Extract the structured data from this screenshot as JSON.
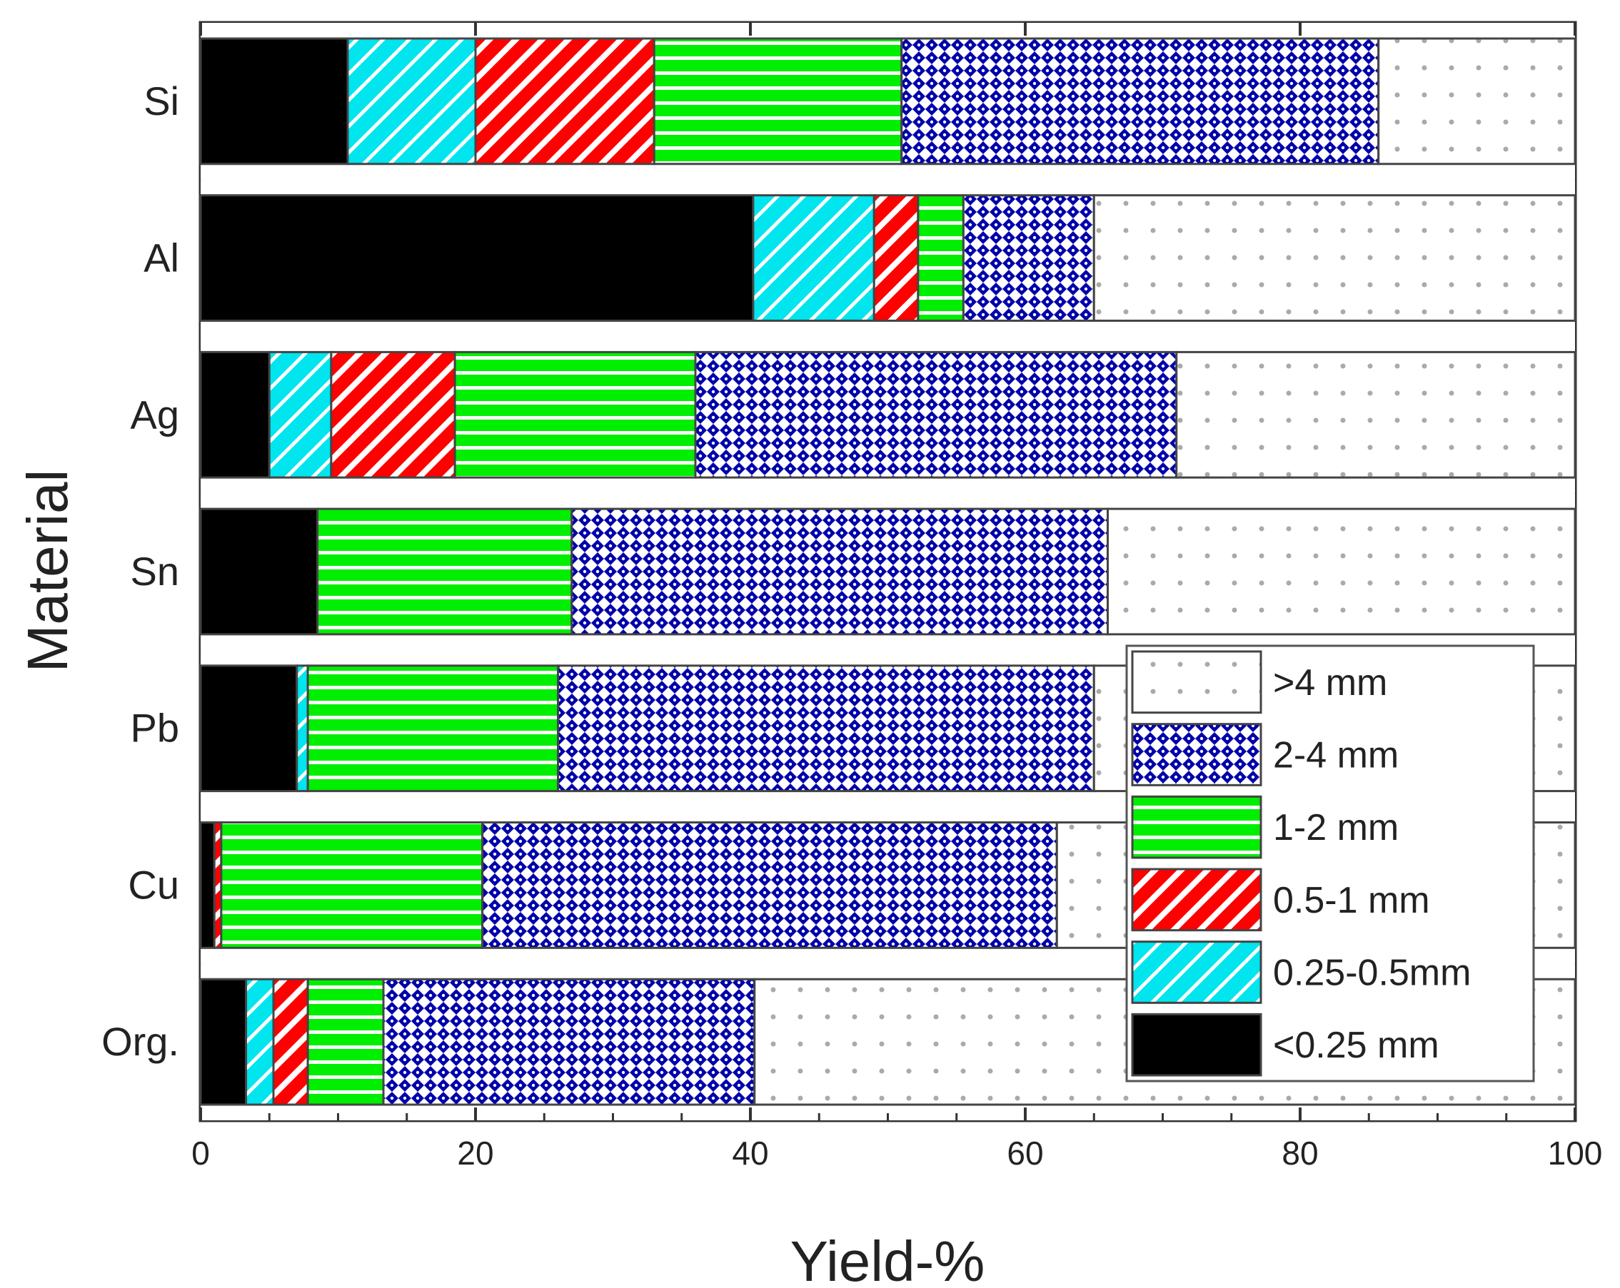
{
  "chart_data": {
    "type": "bar",
    "orientation": "horizontal",
    "stacked": true,
    "xlabel": "Yield-%",
    "ylabel": "Material",
    "xlim": [
      0,
      100
    ],
    "xticks": [
      0,
      20,
      40,
      60,
      80,
      100
    ],
    "categories": [
      "Si",
      "Al",
      "Ag",
      "Sn",
      "Pb",
      "Cu",
      "Org."
    ],
    "series": [
      {
        "name": "<0.25 mm",
        "color": "#000000",
        "pattern": "solid",
        "values": [
          10.7,
          40.2,
          5.0,
          8.5,
          7.0,
          1.0,
          3.3
        ]
      },
      {
        "name": "0.25-0.5mm",
        "color": "#00e5ee",
        "pattern": "diagonal",
        "values": [
          9.3,
          8.8,
          4.5,
          0.0,
          0.8,
          0.0,
          2.0
        ]
      },
      {
        "name": "0.5-1 mm",
        "color": "#ff0000",
        "pattern": "diagonal",
        "values": [
          13.0,
          3.2,
          9.0,
          0.0,
          0.0,
          0.5,
          2.5
        ]
      },
      {
        "name": "1-2 mm",
        "color": "#00ee00",
        "pattern": "horizontal",
        "values": [
          18.0,
          3.3,
          17.5,
          18.5,
          18.2,
          19.0,
          5.5
        ]
      },
      {
        "name": "2-4 mm",
        "color": "#0000aa",
        "pattern": "crosshatch",
        "values": [
          34.7,
          9.5,
          35.0,
          39.0,
          39.0,
          41.8,
          27.0
        ]
      },
      {
        "name": ">4 mm",
        "color": "#ffffff",
        "pattern": "dots",
        "values": [
          14.3,
          35.0,
          29.0,
          34.0,
          35.0,
          37.7,
          59.7
        ]
      }
    ],
    "legend": {
      "placement": "lower-right",
      "order": [
        ">4 mm",
        "2-4 mm",
        "1-2 mm",
        "0.5-1 mm",
        "0.25-0.5mm",
        "<0.25 mm"
      ]
    }
  }
}
